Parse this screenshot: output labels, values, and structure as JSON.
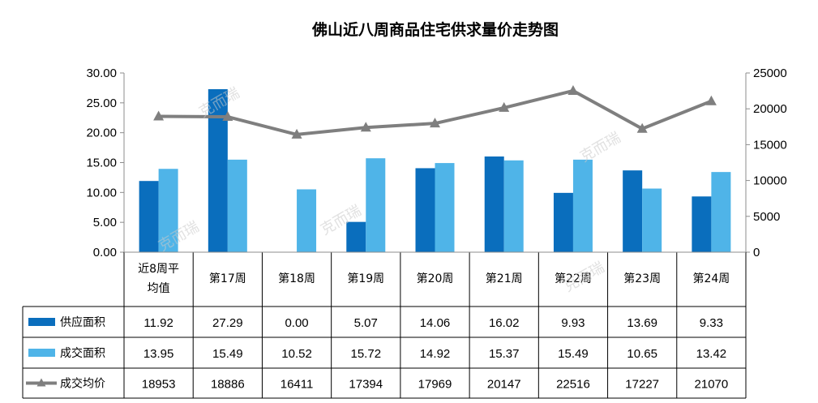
{
  "chart_data": {
    "type": "bar",
    "title": "佛山近八周商品住宅供求量价走势图",
    "categories": [
      "近8周平均值",
      "第17周",
      "第18周",
      "第19周",
      "第20周",
      "第21周",
      "第22周",
      "第23周",
      "第24周"
    ],
    "category_lines": [
      [
        "近8周平",
        "均值"
      ],
      [
        "第17周"
      ],
      [
        "第18周"
      ],
      [
        "第19周"
      ],
      [
        "第20周"
      ],
      [
        "第21周"
      ],
      [
        "第22周"
      ],
      [
        "第23周"
      ],
      [
        "第24周"
      ]
    ],
    "y_left": {
      "ylim": [
        0,
        30
      ],
      "ticks": [
        "30.00",
        "25.00",
        "20.00",
        "15.00",
        "10.00",
        "5.00",
        "0.00"
      ]
    },
    "y_right": {
      "ylim": [
        0,
        25000
      ],
      "ticks": [
        "25000",
        "20000",
        "15000",
        "10000",
        "5000",
        "0"
      ]
    },
    "series": [
      {
        "name": "供应面积",
        "type": "bar",
        "axis": "left",
        "color": "#0a6ebd",
        "values": [
          11.92,
          27.29,
          0.0,
          5.07,
          14.06,
          16.02,
          9.93,
          13.69,
          9.33
        ],
        "labels": [
          "11.92",
          "27.29",
          "0.00",
          "5.07",
          "14.06",
          "16.02",
          "9.93",
          "13.69",
          "9.33"
        ]
      },
      {
        "name": "成交面积",
        "type": "bar",
        "axis": "left",
        "color": "#4fb4e8",
        "values": [
          13.95,
          15.49,
          10.52,
          15.72,
          14.92,
          15.37,
          15.49,
          10.65,
          13.42
        ],
        "labels": [
          "13.95",
          "15.49",
          "10.52",
          "15.72",
          "14.92",
          "15.37",
          "15.49",
          "10.65",
          "13.42"
        ]
      },
      {
        "name": "成交均价",
        "type": "line",
        "axis": "right",
        "color": "#7f7f7f",
        "values": [
          18953,
          18886,
          16411,
          17394,
          17969,
          20147,
          22516,
          17227,
          21070
        ],
        "labels": [
          "18953",
          "18886",
          "16411",
          "17394",
          "17969",
          "20147",
          "22516",
          "17227",
          "21070"
        ]
      }
    ],
    "legend": "table-left",
    "watermark": "克而瑞"
  }
}
